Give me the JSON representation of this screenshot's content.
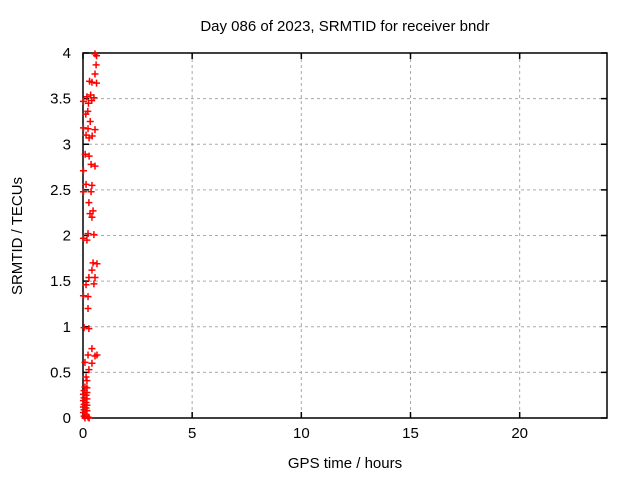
{
  "chart_data": {
    "type": "scatter",
    "title": "Day 086 of 2023, SRMTID for receiver bndr",
    "xlabel": "GPS time / hours",
    "ylabel": "SRMTID / TECUs",
    "xlim": [
      0,
      24
    ],
    "ylim": [
      0,
      4
    ],
    "xticks": [
      0,
      5,
      10,
      15,
      20
    ],
    "yticks": [
      0,
      0.5,
      1,
      1.5,
      2,
      2.5,
      3,
      3.5,
      4
    ],
    "grid": "dashed",
    "grid_color": "#aaaaaa",
    "border_color": "#000000",
    "background": "#ffffff",
    "legend": "none",
    "marker": {
      "shape": "plus",
      "color": "#ff0000",
      "size": 7
    },
    "series": [
      {
        "name": "SRMTID",
        "points": [
          [
            0.55,
            3.99
          ],
          [
            0.62,
            3.97
          ],
          [
            0.6,
            3.87
          ],
          [
            0.55,
            3.77
          ],
          [
            0.3,
            3.69
          ],
          [
            0.41,
            3.68
          ],
          [
            0.62,
            3.67
          ],
          [
            0.35,
            3.54
          ],
          [
            0.18,
            3.52
          ],
          [
            0.5,
            3.51
          ],
          [
            0.4,
            3.48
          ],
          [
            0.02,
            3.47
          ],
          [
            0.25,
            3.45
          ],
          [
            0.22,
            3.36
          ],
          [
            0.13,
            3.33
          ],
          [
            0.33,
            3.25
          ],
          [
            0.02,
            3.18
          ],
          [
            0.23,
            3.17
          ],
          [
            0.55,
            3.16
          ],
          [
            0.14,
            3.1
          ],
          [
            0.42,
            3.09
          ],
          [
            0.28,
            3.07
          ],
          [
            0.1,
            2.89
          ],
          [
            0.28,
            2.87
          ],
          [
            0.37,
            2.78
          ],
          [
            0.55,
            2.76
          ],
          [
            0.02,
            2.71
          ],
          [
            0.14,
            2.56
          ],
          [
            0.41,
            2.55
          ],
          [
            0.02,
            2.48
          ],
          [
            0.37,
            2.48
          ],
          [
            0.27,
            2.36
          ],
          [
            0.46,
            2.27
          ],
          [
            0.32,
            2.24
          ],
          [
            0.41,
            2.2
          ],
          [
            0.23,
            2.02
          ],
          [
            0.5,
            2.01
          ],
          [
            0.02,
            1.97
          ],
          [
            0.18,
            1.95
          ],
          [
            0.46,
            1.7
          ],
          [
            0.64,
            1.69
          ],
          [
            0.41,
            1.62
          ],
          [
            0.27,
            1.54
          ],
          [
            0.55,
            1.54
          ],
          [
            0.5,
            1.47
          ],
          [
            0.14,
            1.46
          ],
          [
            0.02,
            1.34
          ],
          [
            0.23,
            1.33
          ],
          [
            0.23,
            1.2
          ],
          [
            0.05,
            0.99
          ],
          [
            0.27,
            0.98
          ],
          [
            0.41,
            0.76
          ],
          [
            0.23,
            0.69
          ],
          [
            0.64,
            0.69
          ],
          [
            0.55,
            0.68
          ],
          [
            0.09,
            0.61
          ],
          [
            0.41,
            0.6
          ],
          [
            0.27,
            0.53
          ],
          [
            0.14,
            0.45
          ],
          [
            0.18,
            0.41
          ],
          [
            0.09,
            0.34
          ],
          [
            0.18,
            0.33
          ],
          [
            0.05,
            0.3
          ],
          [
            0.18,
            0.28
          ],
          [
            0.02,
            0.26
          ],
          [
            0.14,
            0.25
          ],
          [
            0.05,
            0.22
          ],
          [
            0.18,
            0.21
          ],
          [
            0.02,
            0.19
          ],
          [
            0.14,
            0.17
          ],
          [
            0.05,
            0.15
          ],
          [
            0.18,
            0.14
          ],
          [
            0.02,
            0.12
          ],
          [
            0.14,
            0.11
          ],
          [
            0.05,
            0.09
          ],
          [
            0.18,
            0.08
          ],
          [
            0.02,
            0.06
          ],
          [
            0.14,
            0.04
          ],
          [
            0.05,
            0.02
          ],
          [
            0.23,
            0.01
          ],
          [
            0.09,
            0.0
          ],
          [
            0.28,
            0.0
          ]
        ]
      }
    ]
  }
}
